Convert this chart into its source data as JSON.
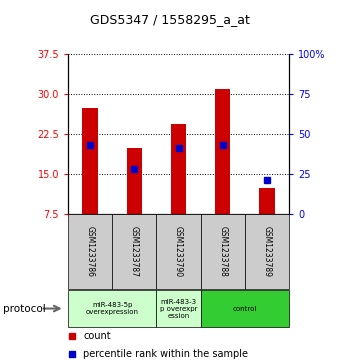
{
  "title": "GDS5347 / 1558295_a_at",
  "samples": [
    "GSM1233786",
    "GSM1233787",
    "GSM1233790",
    "GSM1233788",
    "GSM1233789"
  ],
  "bar_values": [
    27.5,
    20.0,
    24.5,
    31.0,
    12.5
  ],
  "bar_base": 7.5,
  "percentile_values": [
    20.5,
    16.0,
    20.0,
    20.5,
    14.0
  ],
  "bar_color": "#cc0000",
  "percentile_color": "#0000cc",
  "ylim_left": [
    7.5,
    37.5
  ],
  "yticks_left": [
    7.5,
    15.0,
    22.5,
    30.0,
    37.5
  ],
  "ylim_right": [
    0,
    100
  ],
  "yticks_right": [
    0,
    25,
    50,
    75,
    100
  ],
  "ytick_labels_right": [
    "0",
    "25",
    "50",
    "75",
    "100%"
  ],
  "group_configs": [
    [
      0,
      2,
      "miR-483-5p\noverexpression",
      "#ccffcc"
    ],
    [
      2,
      3,
      "miR-483-3\np overexpr\nession",
      "#ccffcc"
    ],
    [
      3,
      5,
      "control",
      "#33cc33"
    ]
  ],
  "protocol_label": "protocol",
  "legend_count_label": "count",
  "legend_percentile_label": "percentile rank within the sample",
  "bar_width": 0.35,
  "sample_box_color": "#cccccc",
  "figure_bg": "#ffffff"
}
